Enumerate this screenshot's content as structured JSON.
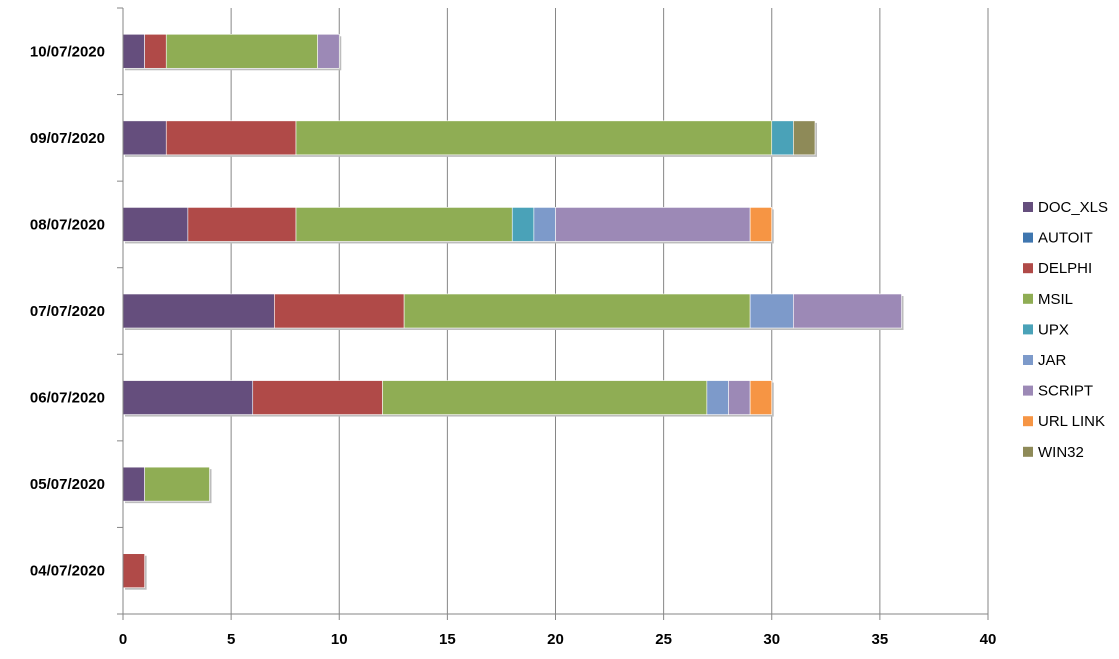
{
  "chart_data": {
    "type": "bar",
    "orientation": "horizontal",
    "stacked": true,
    "categories": [
      "04/07/2020",
      "05/07/2020",
      "06/07/2020",
      "07/07/2020",
      "08/07/2020",
      "09/07/2020",
      "10/07/2020"
    ],
    "series": [
      {
        "name": "DOC_XLS",
        "color": "#654E7D",
        "values": [
          0,
          1,
          6,
          7,
          3,
          2,
          1
        ]
      },
      {
        "name": "AUTOIT",
        "color": "#3F76AF",
        "values": [
          0,
          0,
          0,
          0,
          0,
          0,
          0
        ]
      },
      {
        "name": "DELPHI",
        "color": "#B04A48",
        "values": [
          1,
          0,
          6,
          6,
          5,
          6,
          1
        ]
      },
      {
        "name": "MSIL",
        "color": "#8FAD54",
        "values": [
          0,
          3,
          15,
          16,
          10,
          22,
          7
        ]
      },
      {
        "name": "UPX",
        "color": "#4AA2B8",
        "values": [
          0,
          0,
          0,
          0,
          1,
          1,
          0
        ]
      },
      {
        "name": "JAR",
        "color": "#7D9ACA",
        "values": [
          0,
          0,
          1,
          2,
          1,
          0,
          0
        ]
      },
      {
        "name": "SCRIPT",
        "color": "#9C89B6",
        "values": [
          0,
          0,
          1,
          5,
          9,
          0,
          1
        ]
      },
      {
        "name": "URL LINK",
        "color": "#F69544",
        "values": [
          0,
          0,
          1,
          0,
          1,
          0,
          0
        ]
      },
      {
        "name": "WIN32",
        "color": "#8E8A58",
        "values": [
          0,
          0,
          0,
          0,
          0,
          1,
          0
        ]
      }
    ],
    "xlim": [
      0,
      40
    ],
    "xticks": [
      "0",
      "5",
      "10",
      "15",
      "20",
      "25",
      "30",
      "35",
      "40"
    ],
    "grid": "vertical",
    "legend_position": "right"
  }
}
